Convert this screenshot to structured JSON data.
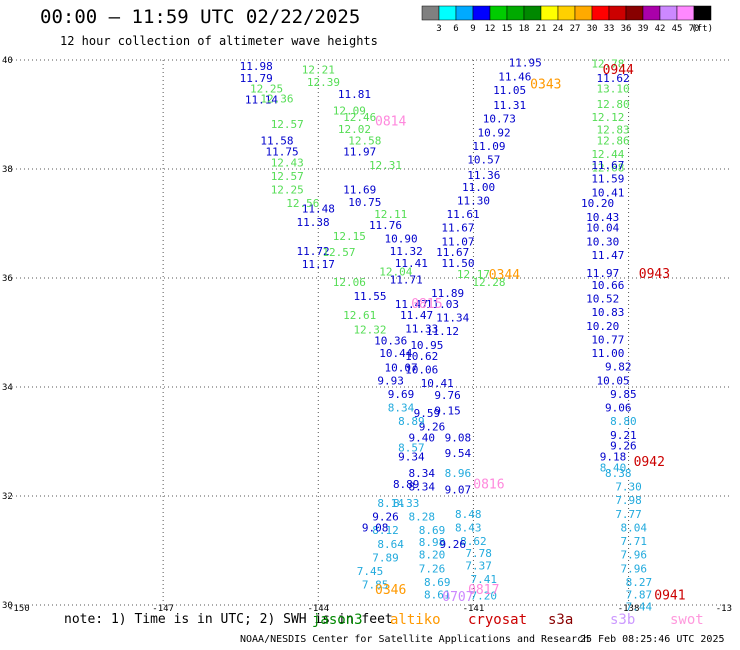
{
  "title": "00:00 – 11:59 UTC 02/22/2025",
  "subtitle": "12 hour collection of altimeter wave heights",
  "colorbar": {
    "unit": "(ft)",
    "colors": [
      "#808080",
      "#00ffff",
      "#00aaff",
      "#0000ff",
      "#00cc00",
      "#00aa00",
      "#008800",
      "#ffff00",
      "#ffd000",
      "#ffaa00",
      "#ff0000",
      "#cc0000",
      "#880000",
      "#aa00aa",
      "#cc88ff",
      "#ff88ff",
      "#000000"
    ],
    "labels": [
      "3",
      "6",
      "9",
      "12",
      "15",
      "18",
      "21",
      "24",
      "27",
      "30",
      "33",
      "36",
      "39",
      "42",
      "45",
      "70"
    ]
  },
  "axes": {
    "y_ticks": [
      "40",
      "38",
      "36",
      "34",
      "32",
      "30"
    ],
    "x_ticks": [
      "-150",
      "-147",
      "-144",
      "-141",
      "-138",
      "-13"
    ]
  },
  "note": "note: 1) Time is in UTC; 2) SWH is in feet",
  "legend": [
    {
      "name": "jason3",
      "color": "#008800"
    },
    {
      "name": "altiko",
      "color": "#ff9900"
    },
    {
      "name": "cryosat",
      "color": "#cc0000"
    },
    {
      "name": "s3a",
      "color": "#880000"
    },
    {
      "name": "s3b",
      "color": "#cc99ff"
    },
    {
      "name": "swot",
      "color": "#ff99dd"
    }
  ],
  "footer": {
    "org": "NOAA/NESDIS Center for Satellite Applications and Research",
    "timestamp": "25 Feb 08:25:46 UTC 2025"
  },
  "chart_data": {
    "type": "scatter",
    "title": "00:00 – 11:59 UTC 02/22/2025",
    "subtitle": "12 hour collection of altimeter wave heights",
    "xlim": [
      -150,
      -136
    ],
    "ylim": [
      30,
      40
    ],
    "pass_labels": [
      {
        "text": "0944",
        "lon": -138.2,
        "lat": 39.74,
        "color": "#cc0000"
      },
      {
        "text": "0343",
        "lon": -139.6,
        "lat": 39.48,
        "color": "#ff9900"
      },
      {
        "text": "0814",
        "lon": -142.6,
        "lat": 38.8,
        "color": "#ff88dd"
      },
      {
        "text": "0943",
        "lon": -137.5,
        "lat": 36.0,
        "color": "#cc0000"
      },
      {
        "text": "0344",
        "lon": -140.4,
        "lat": 35.98,
        "color": "#ff9900"
      },
      {
        "text": "0815",
        "lon": -141.9,
        "lat": 35.45,
        "color": "#ff88dd"
      },
      {
        "text": "0942",
        "lon": -137.6,
        "lat": 32.55,
        "color": "#cc0000"
      },
      {
        "text": "0816",
        "lon": -140.7,
        "lat": 32.14,
        "color": "#ff88dd"
      },
      {
        "text": "0941",
        "lon": -137.2,
        "lat": 30.1,
        "color": "#cc0000"
      },
      {
        "text": "0346",
        "lon": -142.6,
        "lat": 30.2,
        "color": "#ff9900"
      },
      {
        "text": "0817",
        "lon": -140.8,
        "lat": 30.2,
        "color": "#ff88dd"
      },
      {
        "text": "0707",
        "lon": -141.3,
        "lat": 30.07,
        "color": "#cc88ff"
      }
    ],
    "series": [
      {
        "color": "#0000cc",
        "points": [
          [
            -145.2,
            39.82,
            "11.98"
          ],
          [
            -145.2,
            39.6,
            "11.79"
          ],
          [
            -145.1,
            39.2,
            "11.14"
          ],
          [
            -144.8,
            38.45,
            "11.58"
          ],
          [
            -144.7,
            38.25,
            "11.75"
          ],
          [
            -144.0,
            37.2,
            "11.48"
          ],
          [
            -144.1,
            36.95,
            "11.38"
          ],
          [
            -144.1,
            36.42,
            "11.72"
          ],
          [
            -144.0,
            36.18,
            "11.17"
          ]
        ]
      },
      {
        "color": "#55dd55",
        "points": [
          [
            -144.0,
            39.75,
            "12.21"
          ],
          [
            -143.9,
            39.52,
            "12.39"
          ],
          [
            -145.0,
            39.4,
            "12.25"
          ],
          [
            -144.8,
            39.22,
            "12.36"
          ],
          [
            -144.6,
            38.75,
            "12.57"
          ],
          [
            -144.6,
            38.05,
            "12.43"
          ],
          [
            -144.6,
            37.8,
            "12.57"
          ],
          [
            -144.6,
            37.55,
            "12.25"
          ],
          [
            -144.3,
            37.3,
            "12.56"
          ],
          [
            -143.4,
            36.7,
            "12.15"
          ],
          [
            -143.6,
            36.4,
            "12.57"
          ],
          [
            -143.4,
            35.85,
            "12.06"
          ],
          [
            -143.2,
            35.25,
            "12.61"
          ],
          [
            -143.0,
            34.98,
            "12.32"
          ]
        ]
      },
      {
        "color": "#0000cc",
        "points": [
          [
            -143.3,
            39.3,
            "11.81"
          ],
          [
            -143.2,
            38.25,
            "11.97"
          ],
          [
            -143.2,
            37.55,
            "11.69"
          ],
          [
            -143.1,
            37.32,
            "10.75"
          ],
          [
            -142.7,
            36.9,
            "11.76"
          ],
          [
            -142.4,
            36.65,
            "10.90"
          ],
          [
            -142.3,
            36.42,
            "11.32"
          ],
          [
            -142.2,
            36.2,
            "11.41"
          ],
          [
            -142.3,
            35.9,
            "11.71"
          ],
          [
            -143.0,
            35.6,
            "11.55"
          ],
          [
            -142.2,
            35.45,
            "11.47"
          ],
          [
            -142.1,
            35.25,
            "11.47"
          ],
          [
            -142.0,
            35.0,
            "11.33"
          ],
          [
            -142.6,
            34.78,
            "10.36"
          ],
          [
            -142.5,
            34.55,
            "10.44"
          ],
          [
            -142.4,
            34.28,
            "10.07"
          ],
          [
            -142.6,
            34.05,
            "9.93"
          ],
          [
            -142.4,
            33.8,
            "9.69"
          ]
        ]
      },
      {
        "color": "#55dd55",
        "points": [
          [
            -143.4,
            39.0,
            "12.09"
          ],
          [
            -143.2,
            38.88,
            "12.46"
          ],
          [
            -143.3,
            38.66,
            "12.02"
          ],
          [
            -143.1,
            38.45,
            "12.58"
          ],
          [
            -142.7,
            38.0,
            "12.31"
          ],
          [
            -142.6,
            37.1,
            "12.11"
          ],
          [
            -142.5,
            36.05,
            "12.04"
          ],
          [
            -141.0,
            36.0,
            "12.17"
          ],
          [
            -140.7,
            35.85,
            "12.28"
          ],
          [
            -138.4,
            39.86,
            "12.78"
          ],
          [
            -138.3,
            39.4,
            "13.10"
          ],
          [
            -138.3,
            39.12,
            "12.80"
          ],
          [
            -138.4,
            38.88,
            "12.12"
          ],
          [
            -138.3,
            38.65,
            "12.83"
          ],
          [
            -138.3,
            38.45,
            "12.86"
          ],
          [
            -138.4,
            38.2,
            "12.44"
          ],
          [
            -138.4,
            37.95,
            "12.68"
          ]
        ]
      },
      {
        "color": "#0000cc",
        "points": [
          [
            -140.0,
            39.88,
            "11.95"
          ],
          [
            -140.2,
            39.62,
            "11.46"
          ],
          [
            -140.3,
            39.38,
            "11.05"
          ],
          [
            -140.3,
            39.1,
            "11.31"
          ],
          [
            -140.5,
            38.85,
            "10.73"
          ],
          [
            -140.6,
            38.6,
            "10.92"
          ],
          [
            -140.7,
            38.35,
            "11.09"
          ],
          [
            -140.8,
            38.1,
            "10.57"
          ],
          [
            -140.8,
            37.82,
            "11.36"
          ],
          [
            -140.9,
            37.6,
            "11.00"
          ],
          [
            -141.0,
            37.35,
            "11.30"
          ],
          [
            -141.2,
            37.1,
            "11.61"
          ],
          [
            -141.3,
            36.85,
            "11.67"
          ],
          [
            -141.3,
            36.6,
            "11.07"
          ],
          [
            -141.4,
            36.4,
            "11.67"
          ],
          [
            -141.3,
            36.2,
            "11.50"
          ],
          [
            -141.5,
            35.65,
            "11.89"
          ],
          [
            -141.6,
            35.45,
            "11.03"
          ],
          [
            -141.4,
            35.2,
            "11.34"
          ],
          [
            -141.6,
            34.95,
            "11.12"
          ],
          [
            -141.9,
            34.7,
            "10.95"
          ],
          [
            -142.0,
            34.5,
            "10.62"
          ],
          [
            -142.0,
            34.25,
            "10.06"
          ],
          [
            -141.7,
            34.0,
            "10.41"
          ],
          [
            -141.5,
            33.78,
            "9.76"
          ],
          [
            -141.5,
            33.5,
            "9.15"
          ],
          [
            -141.8,
            33.2,
            "9.26"
          ],
          [
            -141.3,
            33.0,
            "9.08"
          ],
          [
            -141.3,
            32.72,
            "9.54"
          ]
        ]
      },
      {
        "color": "#0000cc",
        "points": [
          [
            -138.3,
            39.6,
            "11.62"
          ],
          [
            -138.4,
            38.0,
            "11.67"
          ],
          [
            -138.4,
            37.75,
            "11.59"
          ],
          [
            -138.4,
            37.5,
            "10.41"
          ],
          [
            -138.6,
            37.3,
            "10.20"
          ],
          [
            -138.5,
            37.05,
            "10.43"
          ],
          [
            -138.5,
            36.85,
            "10.04"
          ],
          [
            -138.5,
            36.6,
            "10.30"
          ],
          [
            -138.4,
            36.35,
            "11.47"
          ],
          [
            -138.5,
            36.02,
            "11.97"
          ],
          [
            -138.4,
            35.8,
            "10.66"
          ],
          [
            -138.5,
            35.55,
            "10.52"
          ],
          [
            -138.4,
            35.3,
            "10.83"
          ],
          [
            -138.5,
            35.05,
            "10.20"
          ],
          [
            -138.4,
            34.8,
            "10.77"
          ],
          [
            -138.4,
            34.55,
            "11.00"
          ],
          [
            -138.2,
            34.3,
            "9.82"
          ],
          [
            -138.3,
            34.05,
            "10.05"
          ],
          [
            -138.1,
            33.8,
            "9.85"
          ],
          [
            -138.2,
            33.55,
            "9.06"
          ],
          [
            -138.3,
            32.65,
            "9.18"
          ],
          [
            -141.3,
            32.05,
            "9.07"
          ]
        ]
      },
      {
        "color": "#22aadd",
        "points": [
          [
            -142.4,
            33.55,
            "8.34"
          ],
          [
            -142.2,
            33.3,
            "8.89"
          ],
          [
            -142.2,
            32.82,
            "8.57"
          ],
          [
            -142.6,
            31.8,
            "8.14"
          ],
          [
            -138.1,
            33.3,
            "8.80"
          ],
          [
            -138.3,
            32.45,
            "8.40"
          ],
          [
            -138.2,
            32.35,
            "8.38"
          ],
          [
            -138.0,
            32.1,
            "7.30"
          ],
          [
            -138.0,
            31.85,
            "7.98"
          ],
          [
            -138.0,
            31.6,
            "7.77"
          ],
          [
            -137.9,
            31.35,
            "8.04"
          ],
          [
            -137.9,
            31.1,
            "7.71"
          ],
          [
            -137.9,
            30.85,
            "7.96"
          ],
          [
            -137.9,
            30.6,
            "7.96"
          ],
          [
            -137.8,
            30.35,
            "8.27"
          ],
          [
            -137.8,
            30.12,
            "7.87"
          ],
          [
            -137.8,
            29.9,
            "7.44"
          ],
          [
            -142.7,
            31.3,
            "8.12"
          ],
          [
            -142.6,
            31.05,
            "8.64"
          ],
          [
            -142.7,
            30.8,
            "7.89"
          ],
          [
            -143.0,
            30.55,
            "7.45"
          ],
          [
            -142.9,
            30.3,
            "7.85"
          ],
          [
            -142.3,
            31.8,
            "8.33"
          ],
          [
            -142.0,
            31.55,
            "8.28"
          ],
          [
            -141.8,
            31.3,
            "8.69"
          ],
          [
            -141.8,
            31.08,
            "8.98"
          ],
          [
            -141.8,
            30.85,
            "8.20"
          ],
          [
            -141.8,
            30.6,
            "7.26"
          ],
          [
            -141.7,
            30.35,
            "8.69"
          ],
          [
            -141.7,
            30.12,
            "8.61"
          ],
          [
            -141.1,
            31.6,
            "8.48"
          ],
          [
            -141.1,
            31.35,
            "8.43"
          ],
          [
            -141.0,
            31.1,
            "8.62"
          ],
          [
            -140.9,
            30.88,
            "7.78"
          ],
          [
            -140.9,
            30.65,
            "7.37"
          ],
          [
            -140.8,
            30.4,
            "7.41"
          ],
          [
            -140.8,
            30.1,
            "7.20"
          ],
          [
            -141.3,
            32.35,
            "8.96"
          ]
        ]
      },
      {
        "color": "#0000cc",
        "points": [
          [
            -142.7,
            31.55,
            "9.26"
          ],
          [
            -142.9,
            31.35,
            "9.08"
          ],
          [
            -142.0,
            32.35,
            "8.34"
          ],
          [
            -142.0,
            32.1,
            "8.34"
          ],
          [
            -142.3,
            32.15,
            "8.89"
          ],
          [
            -141.4,
            31.05,
            "9.26"
          ],
          [
            -138.1,
            32.85,
            "9.26"
          ],
          [
            -138.1,
            33.05,
            "9.21"
          ],
          [
            -141.9,
            33.45,
            "9.59"
          ],
          [
            -142.0,
            33.0,
            "9.40"
          ],
          [
            -142.2,
            32.65,
            "9.34"
          ]
        ]
      }
    ]
  }
}
